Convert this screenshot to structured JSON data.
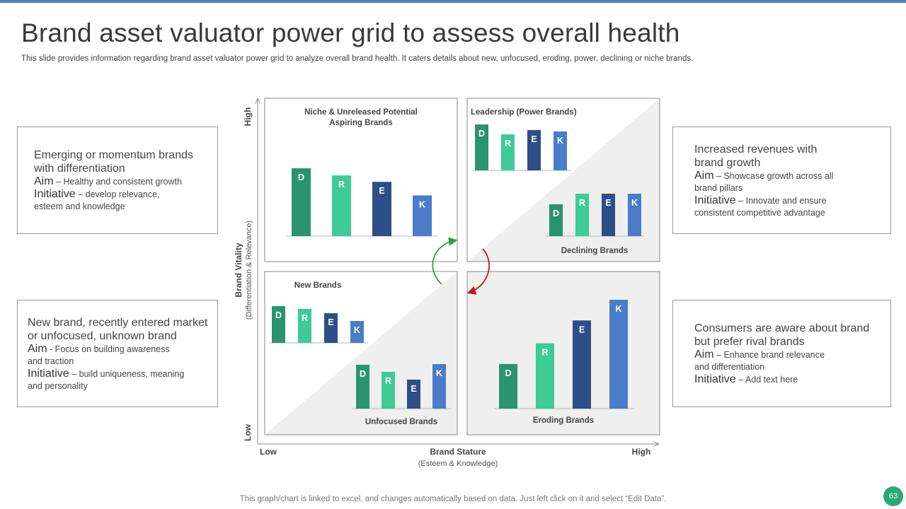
{
  "slide": {
    "title": "Brand asset valuator power grid to assess overall health",
    "subtitle": "This slide provides information regarding brand asset valuator power grid to analyze overall brand health. It caters details about new, unfocused, eroding, power, declining or niche brands.",
    "footer": "This graph/chart is linked to excel, and changes automatically based on data. Just left click on it and select “Edit Data”.",
    "page_number": "63"
  },
  "colors": {
    "D": "#2a9470",
    "R": "#3ecb97",
    "E": "#2d4e86",
    "K": "#4a7cc9",
    "accent": "#4a7fc1",
    "arrow_up": "#2aa048",
    "arrow_down": "#b81e1e"
  },
  "boxes": {
    "top_left": {
      "head1": "Emerging or momentum  brands",
      "head2": "with differentiation",
      "aim_key": "Aim",
      "aim_text": "– Healthy and consistent growth",
      "init_key": "Initiative",
      "init_text": "– develop relevance,",
      "init_text2": "esteem and knowledge"
    },
    "bottom_left": {
      "head1": "New brand, recently entered market",
      "head2": "or unfocused, unknown brand",
      "aim_key": "Aim",
      "aim_text": "- Focus on building awareness",
      "aim_text2": "and traction",
      "init_key": "Initiative",
      "init_text": "– build uniqueness, meaning",
      "init_text2": "and personality"
    },
    "top_right": {
      "head1": "Increased revenues with",
      "head2": "brand growth",
      "aim_key": "Aim",
      "aim_text": "– Showcase growth across all",
      "aim_text2": "brand pillars",
      "init_key": "Initiative",
      "init_text": "– Innovate  and ensure",
      "init_text2": "consistent competitive  advantage"
    },
    "bottom_right": {
      "head1": "Consumers are aware about brand",
      "head2": "but prefer rival brands",
      "aim_key": "Aim",
      "aim_text": "– Enhance brand relevance",
      "aim_text2": " and differentiation",
      "init_key": "Initiative",
      "init_text": "– Add text here"
    }
  },
  "axes": {
    "y_high": "High",
    "y_low": "Low",
    "y_label": "Brand Vitality",
    "y_sublabel": "(Differentiation & Relevance)",
    "x_low": "Low",
    "x_high": "High",
    "x_label": "Brand Stature",
    "x_sublabel": "(Esteem & Knowledge)"
  },
  "quadrants": {
    "niche": {
      "title1": "Niche & Unreleased Potential",
      "title2": "Aspiring Brands"
    },
    "leadership": {
      "title": "Leadership (Power Brands)"
    },
    "declining": {
      "title": "Declining Brands"
    },
    "new": {
      "title": "New Brands"
    },
    "unfocused": {
      "title": "Unfocused Brands"
    },
    "eroding": {
      "title": "Eroding Brands"
    }
  },
  "chart_data": [
    {
      "type": "bar",
      "title": "Niche & Unreleased Potential Aspiring Brands",
      "categories": [
        "D",
        "R",
        "E",
        "K"
      ],
      "values": [
        9.5,
        8.5,
        7.6,
        5.7
      ],
      "ylim": [
        0,
        10
      ]
    },
    {
      "type": "bar",
      "title": "Leadership (Power Brands)",
      "categories": [
        "D",
        "R",
        "E",
        "K"
      ],
      "values": [
        6.5,
        5.1,
        5.7,
        5.5
      ],
      "ylim": [
        0,
        10
      ]
    },
    {
      "type": "bar",
      "title": "Declining Brands",
      "categories": [
        "D",
        "R",
        "E",
        "K"
      ],
      "values": [
        4.5,
        6.0,
        6.0,
        6.0
      ],
      "ylim": [
        0,
        10
      ]
    },
    {
      "type": "bar",
      "title": "New Brands",
      "categories": [
        "D",
        "R",
        "E",
        "K"
      ],
      "values": [
        5.2,
        4.8,
        4.2,
        3.1
      ],
      "ylim": [
        0,
        10
      ]
    },
    {
      "type": "bar",
      "title": "Unfocused Brands",
      "categories": [
        "D",
        "R",
        "E",
        "K"
      ],
      "values": [
        6.2,
        5.2,
        4.1,
        6.3
      ],
      "ylim": [
        0,
        10
      ]
    },
    {
      "type": "bar",
      "title": "Eroding Brands",
      "categories": [
        "D",
        "R",
        "E",
        "K"
      ],
      "values": [
        4.1,
        6.0,
        8.1,
        10.0
      ],
      "ylim": [
        0,
        10
      ]
    }
  ]
}
